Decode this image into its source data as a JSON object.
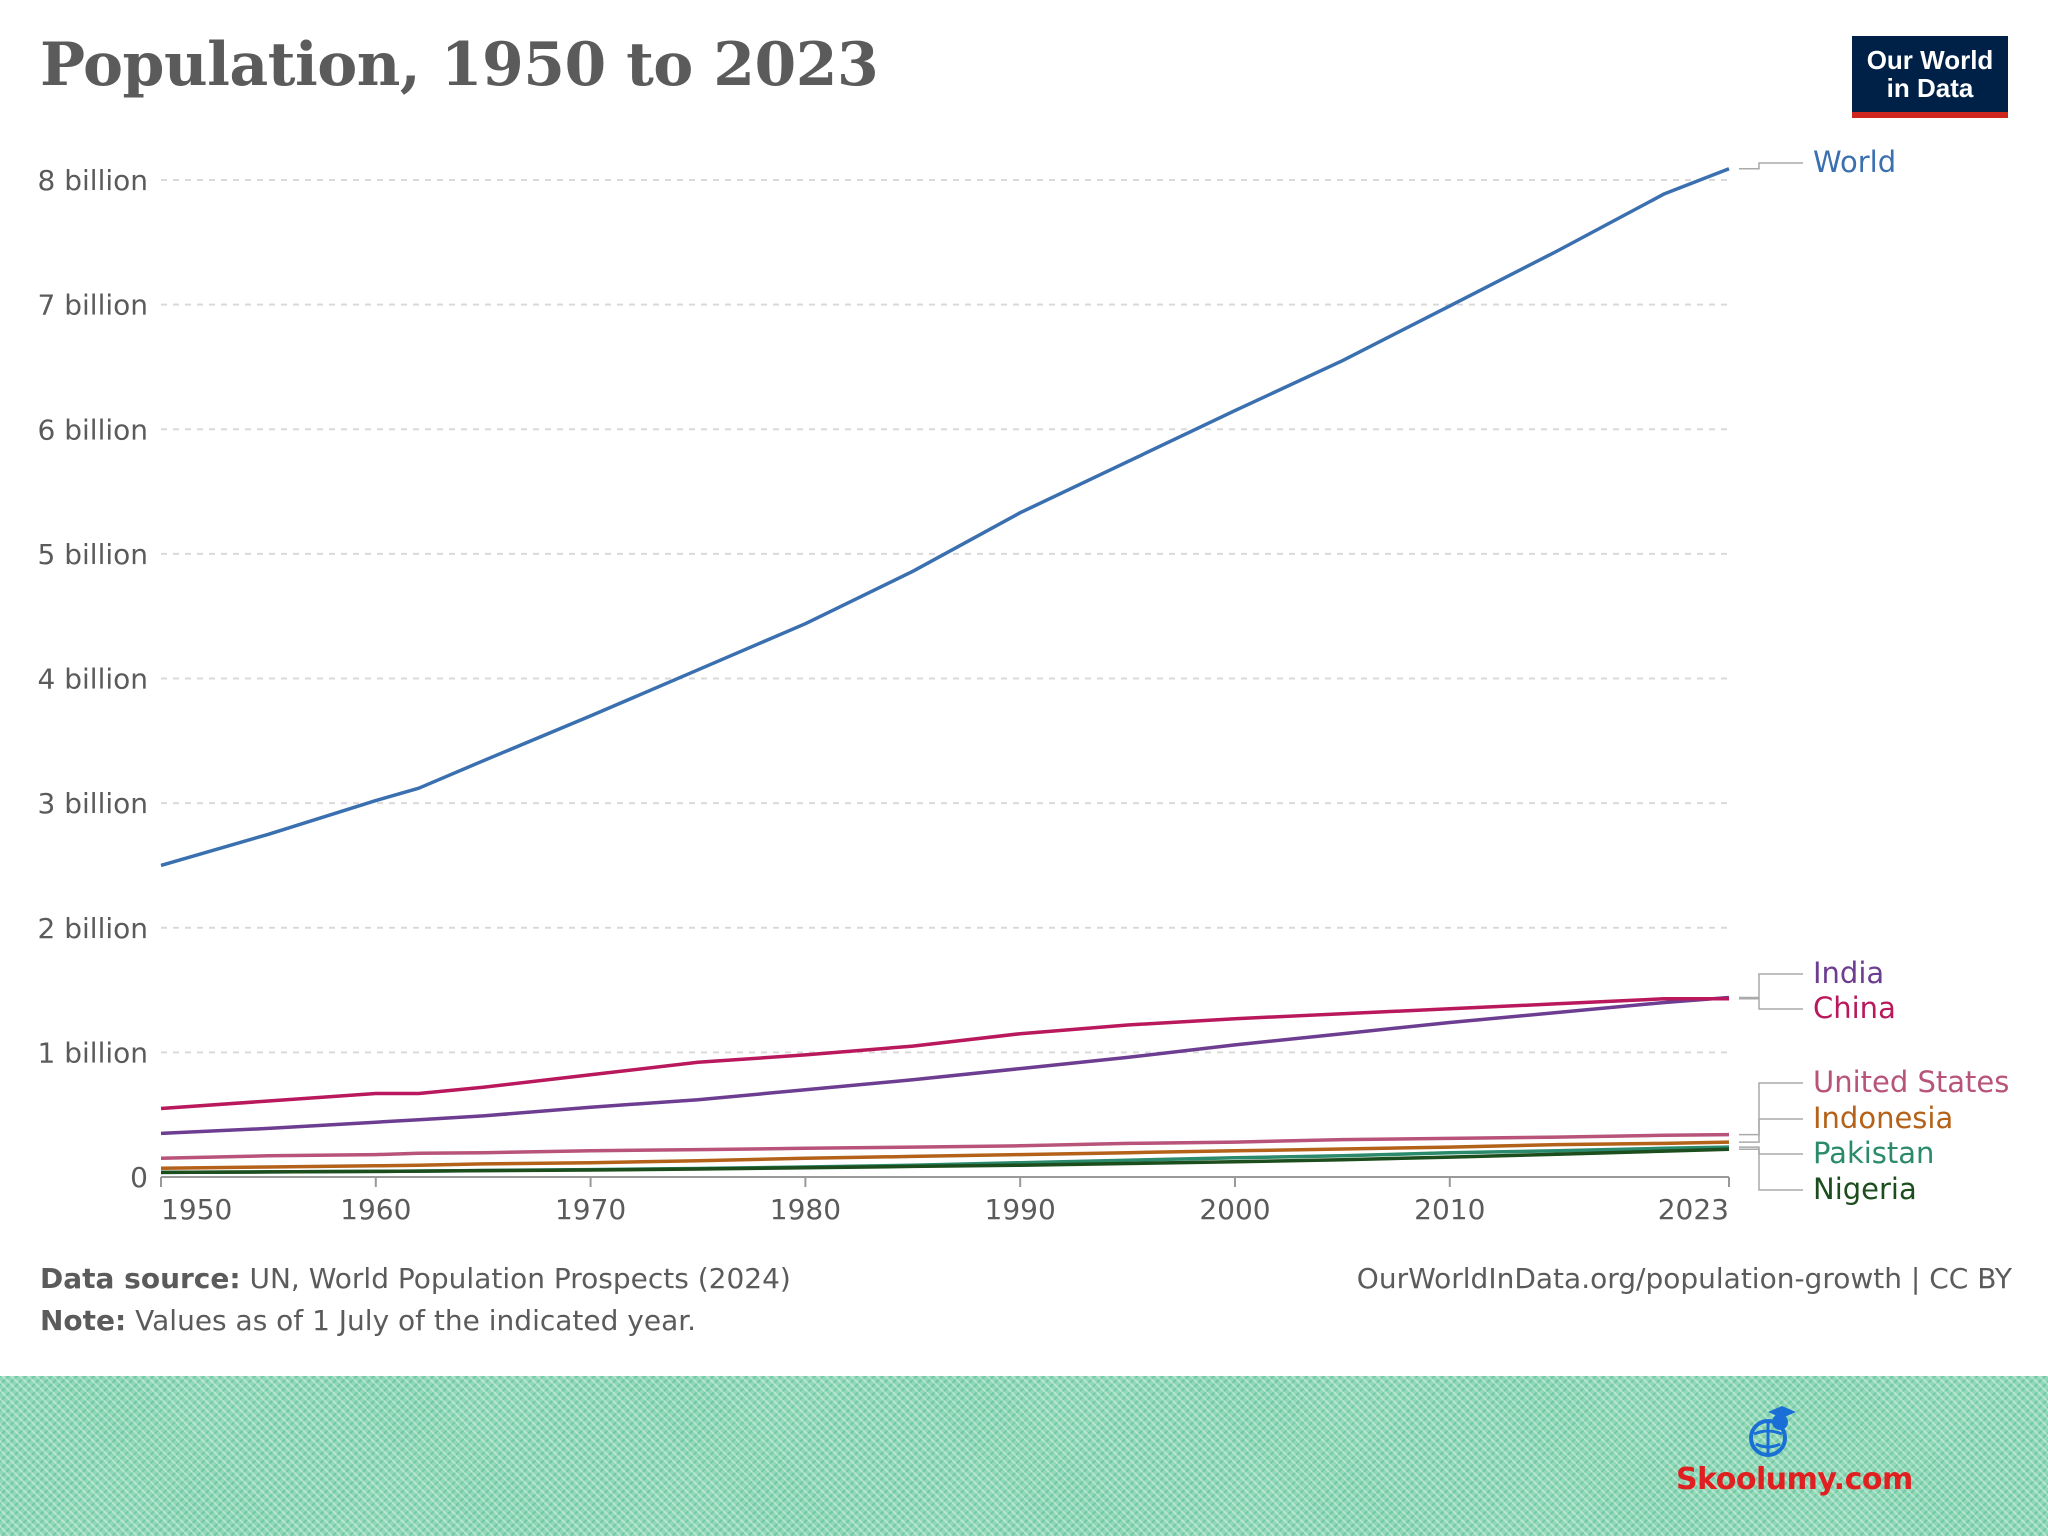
{
  "title": "Population, 1950 to 2023",
  "logo": {
    "line1": "Our World",
    "line2": "in Data"
  },
  "footer": {
    "source_label": "Data source:",
    "source_text": " UN, World Population Prospects (2024)",
    "note_label": "Note:",
    "note_text": " Values as of 1 July of the indicated year.",
    "url_text": "OurWorldInData.org/population-growth | CC BY"
  },
  "brand": {
    "text": "Skoolumy.com",
    "icon": "globe-graduate-icon"
  },
  "chart_data": {
    "type": "line",
    "title": "Population, 1950 to 2023",
    "xlabel": "",
    "ylabel": "",
    "xlim": [
      1950,
      2023
    ],
    "ylim": [
      0,
      8000000000
    ],
    "x_ticks": [
      1950,
      1960,
      1970,
      1980,
      1990,
      2000,
      2010,
      2023
    ],
    "x_tick_labels": [
      "1950",
      "1960",
      "1970",
      "1980",
      "1990",
      "2000",
      "2010",
      "2023"
    ],
    "y_ticks": [
      0,
      1000000000,
      2000000000,
      3000000000,
      4000000000,
      5000000000,
      6000000000,
      7000000000,
      8000000000
    ],
    "y_tick_labels": [
      "0",
      "1 billion",
      "2 billion",
      "3 billion",
      "4 billion",
      "5 billion",
      "6 billion",
      "7 billion",
      "8 billion"
    ],
    "grid": true,
    "legend": "right (end-of-line labels)",
    "x": [
      1950,
      1955,
      1960,
      1962,
      1965,
      1970,
      1975,
      1980,
      1985,
      1990,
      1995,
      2000,
      2005,
      2010,
      2015,
      2020,
      2023
    ],
    "series": [
      {
        "name": "World",
        "color": "#3a6fb0",
        "values": [
          2.5,
          2.75,
          3.02,
          3.12,
          3.34,
          3.7,
          4.07,
          4.44,
          4.86,
          5.33,
          5.74,
          6.15,
          6.55,
          6.99,
          7.43,
          7.89,
          8.09
        ]
      },
      {
        "name": "India",
        "color": "#6c3d91",
        "values": [
          0.35,
          0.39,
          0.44,
          0.46,
          0.49,
          0.56,
          0.62,
          0.7,
          0.78,
          0.87,
          0.96,
          1.06,
          1.15,
          1.24,
          1.32,
          1.4,
          1.44
        ]
      },
      {
        "name": "China",
        "color": "#b9185c",
        "values": [
          0.55,
          0.61,
          0.67,
          0.67,
          0.72,
          0.82,
          0.92,
          0.98,
          1.05,
          1.15,
          1.22,
          1.27,
          1.31,
          1.35,
          1.39,
          1.43,
          1.43
        ]
      },
      {
        "name": "United States",
        "color": "#b8537a",
        "values": [
          0.15,
          0.17,
          0.18,
          0.19,
          0.195,
          0.21,
          0.22,
          0.23,
          0.24,
          0.25,
          0.27,
          0.28,
          0.3,
          0.31,
          0.32,
          0.335,
          0.34
        ]
      },
      {
        "name": "Indonesia",
        "color": "#b4621a",
        "values": [
          0.07,
          0.08,
          0.09,
          0.095,
          0.105,
          0.115,
          0.13,
          0.15,
          0.165,
          0.18,
          0.195,
          0.21,
          0.225,
          0.24,
          0.26,
          0.27,
          0.28
        ]
      },
      {
        "name": "Pakistan",
        "color": "#2a8a6b",
        "values": [
          0.037,
          0.041,
          0.045,
          0.047,
          0.052,
          0.059,
          0.068,
          0.08,
          0.095,
          0.115,
          0.135,
          0.155,
          0.17,
          0.195,
          0.21,
          0.23,
          0.24
        ]
      },
      {
        "name": "Nigeria",
        "color": "#1c4d1c",
        "values": [
          0.037,
          0.041,
          0.045,
          0.047,
          0.051,
          0.056,
          0.064,
          0.074,
          0.085,
          0.095,
          0.108,
          0.122,
          0.138,
          0.16,
          0.182,
          0.208,
          0.223
        ]
      }
    ],
    "unit": "billion"
  }
}
